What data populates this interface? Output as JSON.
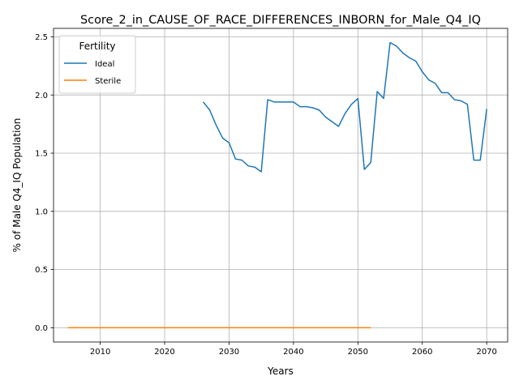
{
  "chart_data": {
    "type": "line",
    "title": "Score_2_in_CAUSE_OF_RACE_DIFFERENCES_INBORN_for_Male_Q4_IQ",
    "xlabel": "Years",
    "ylabel": "% of Male Q4_IQ Population",
    "xlim": [
      2002.75,
      2073.25
    ],
    "ylim": [
      -0.1225,
      2.5725
    ],
    "xticks": [
      2010,
      2020,
      2030,
      2040,
      2050,
      2060,
      2070
    ],
    "yticks": [
      0.0,
      0.5,
      1.0,
      1.5,
      2.0,
      2.5
    ],
    "ytick_labels": [
      "0.0",
      "0.5",
      "1.0",
      "1.5",
      "2.0",
      "2.5"
    ],
    "grid": true,
    "legend": {
      "title": "Fertility",
      "placement": "top-left"
    },
    "series": [
      {
        "name": "Ideal",
        "color": "#1f77b4",
        "x": [
          2026,
          2027,
          2028,
          2029,
          2030,
          2031,
          2032,
          2033,
          2034,
          2035,
          2036,
          2037,
          2038,
          2039,
          2040,
          2041,
          2042,
          2043,
          2044,
          2045,
          2046,
          2047,
          2048,
          2049,
          2050,
          2051,
          2052,
          2053,
          2054,
          2055,
          2056,
          2057,
          2058,
          2059,
          2060,
          2061,
          2062,
          2063,
          2064,
          2065,
          2066,
          2067,
          2068,
          2069,
          2070
        ],
        "y": [
          1.94,
          1.87,
          1.74,
          1.63,
          1.59,
          1.45,
          1.44,
          1.39,
          1.38,
          1.34,
          1.96,
          1.94,
          1.94,
          1.94,
          1.94,
          1.9,
          1.9,
          1.89,
          1.87,
          1.81,
          1.77,
          1.73,
          1.84,
          1.92,
          1.97,
          1.36,
          1.42,
          2.03,
          1.97,
          2.45,
          2.42,
          2.36,
          2.32,
          2.29,
          2.2,
          2.13,
          2.1,
          2.02,
          2.02,
          1.96,
          1.95,
          1.92,
          1.44,
          1.44,
          1.88
        ]
      },
      {
        "name": "Sterile",
        "color": "#ff7f0e",
        "x": [
          2005,
          2052
        ],
        "y": [
          0.0,
          0.0
        ]
      }
    ]
  }
}
